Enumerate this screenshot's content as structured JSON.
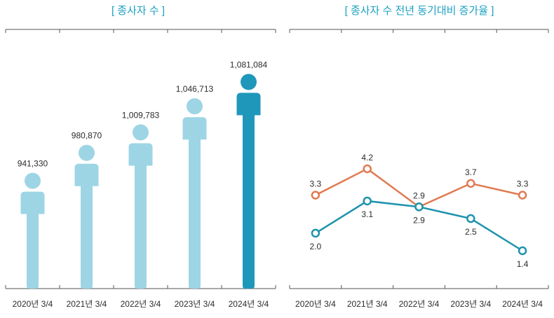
{
  "colors": {
    "title": "#1aa1c1",
    "bar_light": "#9dd5e5",
    "bar_dark": "#1f97ba",
    "series_orange": "#e07a52",
    "series_teal": "#1d93ad",
    "axis": "#555555",
    "text": "#2b2b2b"
  },
  "chart_data": [
    {
      "type": "bar",
      "title": "[ 종사자 수 ]",
      "categories": [
        "2020년 3/4",
        "2021년 3/4",
        "2022년 3/4",
        "2023년 3/4",
        "2024년 3/4"
      ],
      "values": [
        941330,
        980870,
        1009783,
        1046713,
        1081084
      ],
      "value_labels": [
        "941,330",
        "980,870",
        "1,009,783",
        "1,046,713",
        "1,081,084"
      ],
      "highlight_index": 4,
      "xlabel": "",
      "ylabel": "",
      "ylim": [
        890000,
        1090000
      ]
    },
    {
      "type": "line",
      "title": "[ 종사자 수 전년 동기대비 증가율 ]",
      "categories": [
        "2020년 3/4",
        "2021년 3/4",
        "2022년 3/4",
        "2023년 3/4",
        "2024년 3/4"
      ],
      "series": [
        {
          "name": "orange",
          "values": [
            3.3,
            4.2,
            2.9,
            3.7,
            3.3
          ],
          "labels": [
            "3.3",
            "4.2",
            "2.9",
            "3.7",
            "3.3"
          ]
        },
        {
          "name": "teal",
          "values": [
            2.0,
            3.1,
            2.9,
            2.5,
            1.4
          ],
          "labels": [
            "2.0",
            "3.1",
            "2.9",
            "2.5",
            "1.4"
          ]
        }
      ],
      "xlabel": "",
      "ylabel": "",
      "ylim": [
        0.0,
        7.0
      ]
    }
  ]
}
